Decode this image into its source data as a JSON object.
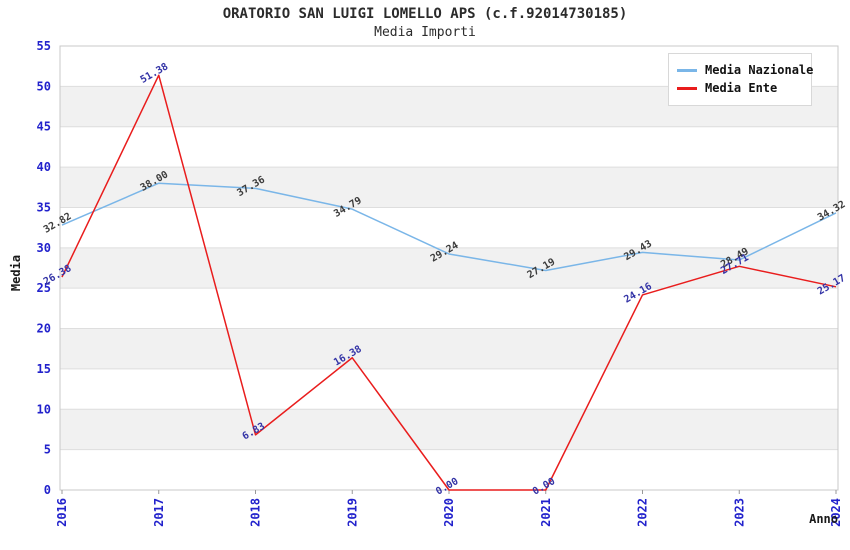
{
  "chart_data": {
    "type": "line",
    "title": "ORATORIO SAN LUIGI LOMELLO APS (c.f.92014730185)",
    "subtitle": "Media Importi",
    "xlabel": "Anno",
    "ylabel": "Media",
    "x": [
      "2016",
      "2017",
      "2018",
      "2019",
      "2020",
      "2021",
      "2022",
      "2023",
      "2024"
    ],
    "series": [
      {
        "name": "Media Nazionale",
        "color": "#7ab6e8",
        "label_color": "#3c3c3c",
        "values": [
          32.82,
          38.0,
          37.36,
          34.79,
          29.24,
          27.19,
          29.43,
          28.49,
          34.32
        ]
      },
      {
        "name": "Media Ente",
        "color": "#e91d1d",
        "label_color": "#3333a6",
        "values": [
          26.38,
          51.38,
          6.83,
          16.38,
          0.0,
          0.0,
          24.16,
          27.71,
          25.17
        ]
      }
    ],
    "ylim": [
      0,
      55
    ],
    "ytick_step": 5,
    "grid": true,
    "legend_position": "top-right",
    "colors": {
      "tick_label": "#2222cc",
      "grid_line": "#dedede",
      "band_fill": "#f1f1f1",
      "plot_border": "#c8c8c8",
      "axis_tick": "#999999",
      "title_text": "#2b2b2b"
    }
  }
}
